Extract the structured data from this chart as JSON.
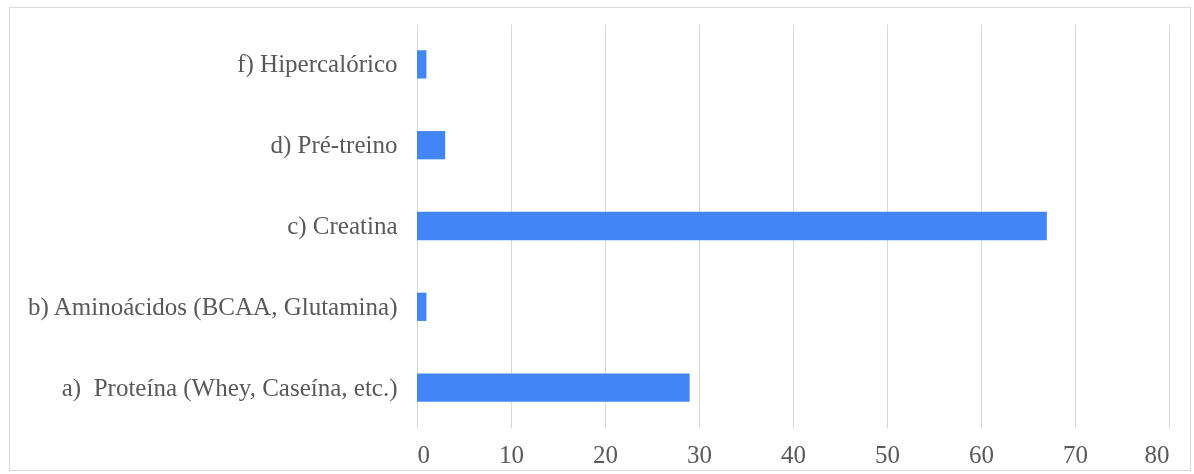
{
  "chart_data": {
    "type": "bar",
    "orientation": "horizontal",
    "categories": [
      "f) Hipercalórico",
      "d) Pré-treino",
      "c) Creatina",
      "b) Aminoácidos (BCAA, Glutamina)",
      "a)  Proteína (Whey, Caseína, etc.)"
    ],
    "values": [
      1,
      3,
      67,
      1,
      29
    ],
    "color": "#4285f4",
    "xlim": [
      0,
      80
    ],
    "xticks": [
      0,
      10,
      20,
      30,
      40,
      50,
      60,
      70,
      80
    ],
    "grid": "x"
  }
}
